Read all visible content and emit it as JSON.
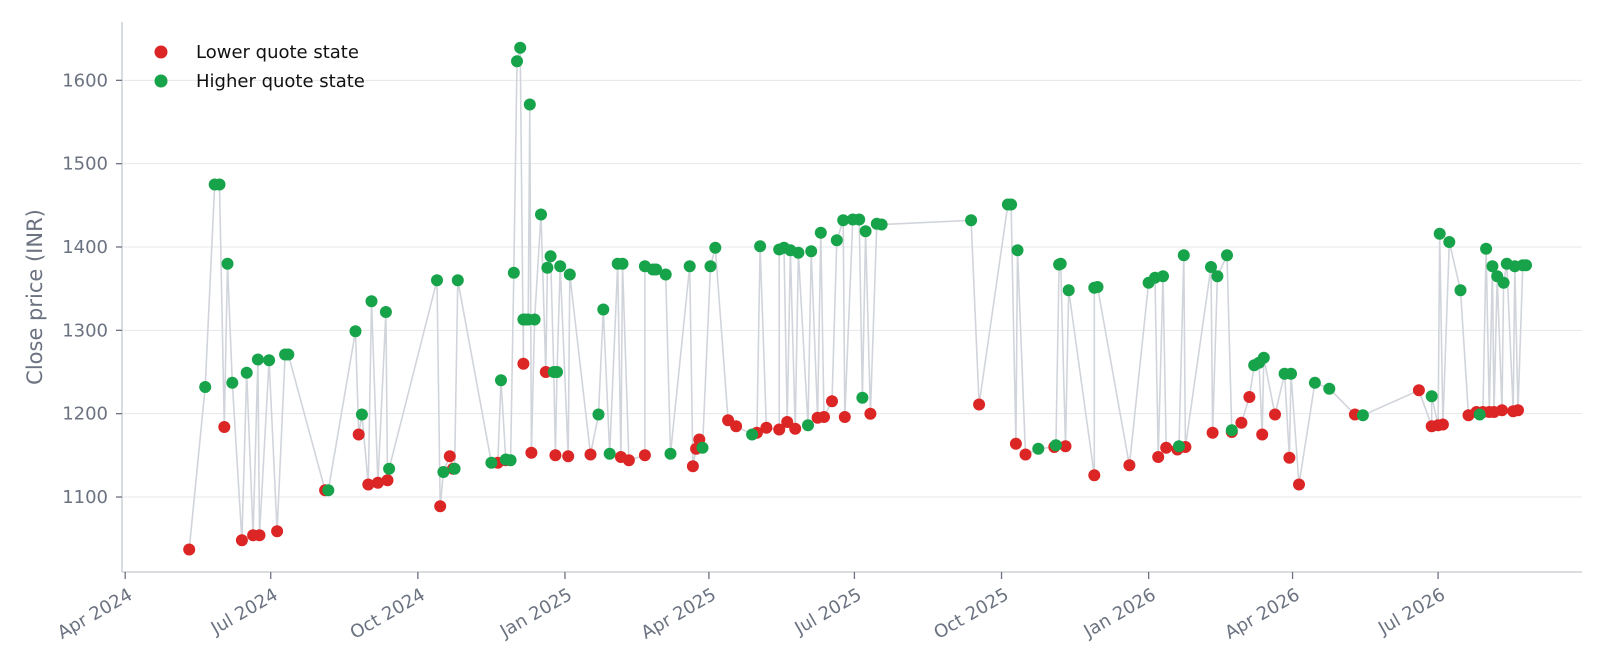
{
  "chart_data": {
    "type": "scatter",
    "title": "",
    "xlabel": "",
    "ylabel": "Close price (INR)",
    "grid": "horizontal",
    "legend_position": "top-left",
    "x_ticks": [
      "2024-04-01",
      "2024-07-01",
      "2024-10-01",
      "2025-01-01",
      "2025-04-01",
      "2025-07-01",
      "2025-10-01",
      "2026-01-01",
      "2026-04-01",
      "2026-07-01"
    ],
    "x_tick_labels": [
      "Apr 2024",
      "Jul 2024",
      "Oct 2024",
      "Jan 2025",
      "Apr 2025",
      "Jul 2025",
      "Oct 2025",
      "Jan 2026",
      "Apr 2026",
      "Jul 2026"
    ],
    "y_ticks": [
      1100,
      1200,
      1300,
      1400,
      1500,
      1600
    ],
    "xlim": [
      "2024-03-30",
      "2026-09-29"
    ],
    "ylim": [
      1010,
      1670
    ],
    "line_color": "#d1d5db",
    "series": [
      {
        "name": "Lower quote state",
        "color": "#dc2626",
        "points": [
          [
            "2024-05-11",
            1037
          ],
          [
            "2024-06-02",
            1184
          ],
          [
            "2024-06-13",
            1048
          ],
          [
            "2024-06-20",
            1054
          ],
          [
            "2024-06-24",
            1054
          ],
          [
            "2024-07-05",
            1059
          ],
          [
            "2024-08-04",
            1108
          ],
          [
            "2024-08-25",
            1175
          ],
          [
            "2024-08-31",
            1115
          ],
          [
            "2024-09-06",
            1117
          ],
          [
            "2024-09-12",
            1120
          ],
          [
            "2024-10-15",
            1089
          ],
          [
            "2024-10-21",
            1149
          ],
          [
            "2024-10-23",
            1134
          ],
          [
            "2024-11-20",
            1141
          ],
          [
            "2024-11-25",
            1144
          ],
          [
            "2024-12-06",
            1260
          ],
          [
            "2024-12-11",
            1153
          ],
          [
            "2024-12-20",
            1250
          ],
          [
            "2024-12-26",
            1150
          ],
          [
            "2025-01-03",
            1149
          ],
          [
            "2025-01-17",
            1151
          ],
          [
            "2025-02-05",
            1148
          ],
          [
            "2025-02-10",
            1144
          ],
          [
            "2025-02-20",
            1150
          ],
          [
            "2025-03-22",
            1137
          ],
          [
            "2025-03-24",
            1158
          ],
          [
            "2025-03-26",
            1169
          ],
          [
            "2025-04-13",
            1192
          ],
          [
            "2025-04-18",
            1185
          ],
          [
            "2025-05-01",
            1177
          ],
          [
            "2025-05-07",
            1183
          ],
          [
            "2025-05-15",
            1181
          ],
          [
            "2025-05-20",
            1190
          ],
          [
            "2025-05-25",
            1182
          ],
          [
            "2025-06-08",
            1195
          ],
          [
            "2025-06-12",
            1196
          ],
          [
            "2025-06-17",
            1215
          ],
          [
            "2025-06-25",
            1196
          ],
          [
            "2025-07-11",
            1200
          ],
          [
            "2025-09-17",
            1211
          ],
          [
            "2025-10-10",
            1164
          ],
          [
            "2025-10-16",
            1151
          ],
          [
            "2025-11-03",
            1160
          ],
          [
            "2025-11-10",
            1161
          ],
          [
            "2025-11-28",
            1126
          ],
          [
            "2025-12-20",
            1138
          ],
          [
            "2026-01-07",
            1148
          ],
          [
            "2026-01-12",
            1159
          ],
          [
            "2026-01-19",
            1157
          ],
          [
            "2026-01-24",
            1160
          ],
          [
            "2026-02-10",
            1177
          ],
          [
            "2026-02-22",
            1178
          ],
          [
            "2026-02-28",
            1189
          ],
          [
            "2026-03-05",
            1220
          ],
          [
            "2026-03-13",
            1175
          ],
          [
            "2026-03-21",
            1199
          ],
          [
            "2026-03-30",
            1147
          ],
          [
            "2026-04-05",
            1115
          ],
          [
            "2026-05-10",
            1199
          ],
          [
            "2026-06-19",
            1228
          ],
          [
            "2026-06-27",
            1185
          ],
          [
            "2026-07-01",
            1186
          ],
          [
            "2026-07-04",
            1187
          ],
          [
            "2026-07-20",
            1198
          ],
          [
            "2026-07-25",
            1202
          ],
          [
            "2026-07-29",
            1202
          ],
          [
            "2026-08-02",
            1202
          ],
          [
            "2026-08-05",
            1202
          ],
          [
            "2026-08-10",
            1204
          ],
          [
            "2026-08-17",
            1203
          ],
          [
            "2026-08-20",
            1204
          ]
        ]
      },
      {
        "name": "Higher quote state",
        "color": "#16a34a",
        "points": [
          [
            "2024-05-21",
            1232
          ],
          [
            "2024-05-27",
            1475
          ],
          [
            "2024-05-30",
            1475
          ],
          [
            "2024-06-04",
            1380
          ],
          [
            "2024-06-07",
            1237
          ],
          [
            "2024-06-16",
            1249
          ],
          [
            "2024-06-23",
            1265
          ],
          [
            "2024-06-30",
            1264
          ],
          [
            "2024-07-10",
            1271
          ],
          [
            "2024-07-12",
            1271
          ],
          [
            "2024-08-06",
            1108
          ],
          [
            "2024-08-23",
            1299
          ],
          [
            "2024-08-27",
            1199
          ],
          [
            "2024-09-02",
            1335
          ],
          [
            "2024-09-11",
            1322
          ],
          [
            "2024-09-13",
            1134
          ],
          [
            "2024-10-13",
            1360
          ],
          [
            "2024-10-17",
            1130
          ],
          [
            "2024-10-24",
            1134
          ],
          [
            "2024-10-26",
            1360
          ],
          [
            "2024-11-16",
            1141
          ],
          [
            "2024-11-22",
            1240
          ],
          [
            "2024-11-25",
            1145
          ],
          [
            "2024-11-28",
            1144
          ],
          [
            "2024-11-30",
            1369
          ],
          [
            "2024-12-02",
            1623
          ],
          [
            "2024-12-04",
            1639
          ],
          [
            "2024-12-06",
            1313
          ],
          [
            "2024-12-07",
            1313
          ],
          [
            "2024-12-09",
            1313
          ],
          [
            "2024-12-10",
            1571
          ],
          [
            "2024-12-13",
            1313
          ],
          [
            "2024-12-17",
            1439
          ],
          [
            "2024-12-21",
            1375
          ],
          [
            "2024-12-23",
            1389
          ],
          [
            "2024-12-25",
            1250
          ],
          [
            "2024-12-27",
            1250
          ],
          [
            "2024-12-29",
            1377
          ],
          [
            "2025-01-04",
            1367
          ],
          [
            "2025-01-22",
            1199
          ],
          [
            "2025-01-25",
            1325
          ],
          [
            "2025-01-29",
            1152
          ],
          [
            "2025-02-03",
            1380
          ],
          [
            "2025-02-06",
            1380
          ],
          [
            "2025-02-20",
            1377
          ],
          [
            "2025-02-25",
            1373
          ],
          [
            "2025-02-27",
            1373
          ],
          [
            "2025-03-05",
            1367
          ],
          [
            "2025-03-08",
            1152
          ],
          [
            "2025-03-20",
            1377
          ],
          [
            "2025-03-28",
            1159
          ],
          [
            "2025-04-02",
            1377
          ],
          [
            "2025-04-05",
            1399
          ],
          [
            "2025-04-28",
            1175
          ],
          [
            "2025-05-03",
            1401
          ],
          [
            "2025-05-15",
            1397
          ],
          [
            "2025-05-18",
            1399
          ],
          [
            "2025-05-22",
            1396
          ],
          [
            "2025-05-27",
            1393
          ],
          [
            "2025-06-02",
            1186
          ],
          [
            "2025-06-04",
            1395
          ],
          [
            "2025-06-10",
            1417
          ],
          [
            "2025-06-20",
            1408
          ],
          [
            "2025-06-24",
            1432
          ],
          [
            "2025-06-30",
            1433
          ],
          [
            "2025-07-04",
            1433
          ],
          [
            "2025-07-06",
            1219
          ],
          [
            "2025-07-08",
            1419
          ],
          [
            "2025-07-15",
            1428
          ],
          [
            "2025-07-18",
            1427
          ],
          [
            "2025-09-12",
            1432
          ],
          [
            "2025-10-05",
            1451
          ],
          [
            "2025-10-07",
            1451
          ],
          [
            "2025-10-11",
            1396
          ],
          [
            "2025-10-24",
            1158
          ],
          [
            "2025-11-04",
            1162
          ],
          [
            "2025-11-06",
            1379
          ],
          [
            "2025-11-07",
            1380
          ],
          [
            "2025-11-12",
            1348
          ],
          [
            "2025-11-28",
            1351
          ],
          [
            "2025-11-30",
            1352
          ],
          [
            "2026-01-01",
            1357
          ],
          [
            "2026-01-05",
            1363
          ],
          [
            "2026-01-10",
            1365
          ],
          [
            "2026-01-20",
            1161
          ],
          [
            "2026-01-23",
            1390
          ],
          [
            "2026-02-09",
            1376
          ],
          [
            "2026-02-13",
            1365
          ],
          [
            "2026-02-19",
            1390
          ],
          [
            "2026-02-22",
            1180
          ],
          [
            "2026-03-08",
            1258
          ],
          [
            "2026-03-11",
            1261
          ],
          [
            "2026-03-14",
            1267
          ],
          [
            "2026-03-27",
            1248
          ],
          [
            "2026-03-31",
            1248
          ],
          [
            "2026-04-15",
            1237
          ],
          [
            "2026-04-24",
            1230
          ],
          [
            "2026-05-15",
            1198
          ],
          [
            "2026-06-27",
            1221
          ],
          [
            "2026-07-02",
            1416
          ],
          [
            "2026-07-08",
            1406
          ],
          [
            "2026-07-15",
            1348
          ],
          [
            "2026-07-27",
            1199
          ],
          [
            "2026-07-31",
            1398
          ],
          [
            "2026-08-04",
            1377
          ],
          [
            "2026-08-07",
            1365
          ],
          [
            "2026-08-11",
            1357
          ],
          [
            "2026-08-13",
            1380
          ],
          [
            "2026-08-18",
            1377
          ],
          [
            "2026-08-23",
            1378
          ],
          [
            "2026-08-25",
            1378
          ]
        ]
      }
    ]
  }
}
